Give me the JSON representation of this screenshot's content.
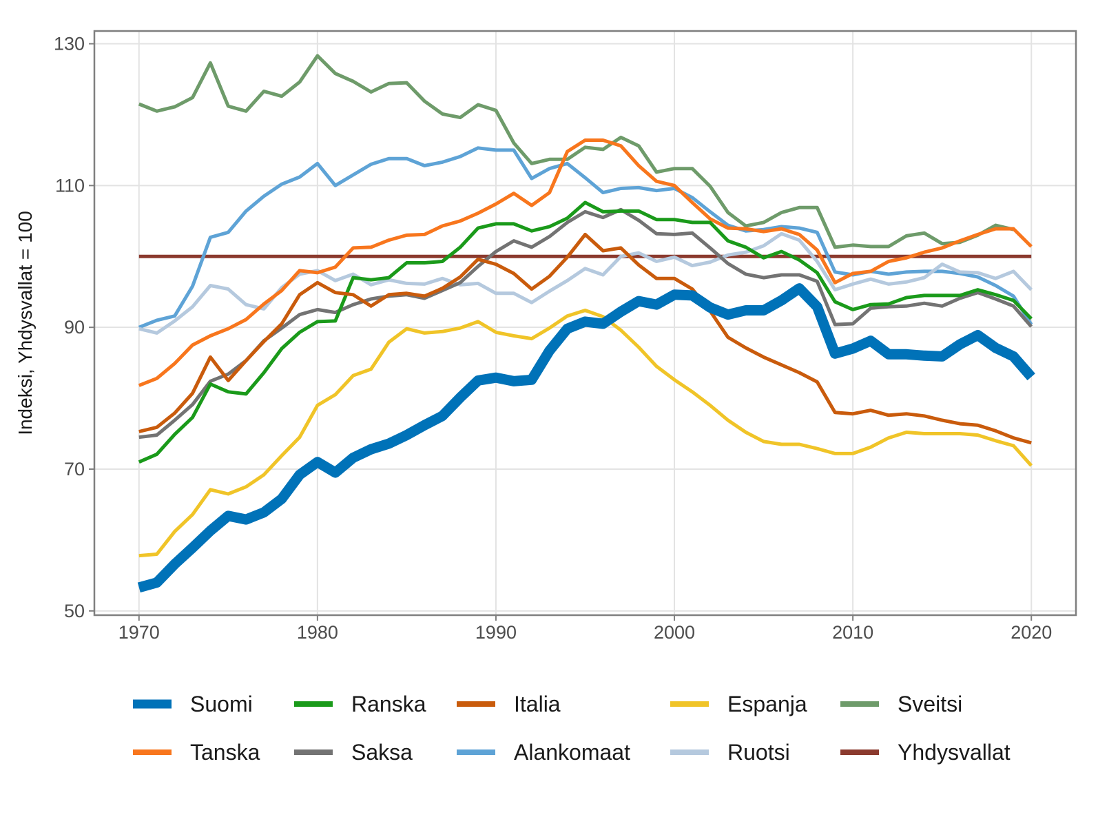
{
  "chart_data": {
    "type": "line",
    "title": "",
    "xlabel": "",
    "ylabel": "Indeksi, Yhdysvallat = 100",
    "xlim": [
      1967.5,
      2022.5
    ],
    "ylim": [
      49.4,
      131.8
    ],
    "x_ticks": [
      1970,
      1980,
      1990,
      2000,
      2010,
      2020
    ],
    "x_tick_labels": [
      "1970",
      "1980",
      "1990",
      "2000",
      "2010",
      "2020"
    ],
    "y_ticks": [
      50,
      70,
      90,
      110,
      130
    ],
    "y_tick_labels": [
      "50",
      "70",
      "90",
      "110",
      "130"
    ],
    "grid": true,
    "legend_position": "bottom",
    "x": [
      1970,
      1971,
      1972,
      1973,
      1974,
      1975,
      1976,
      1977,
      1978,
      1979,
      1980,
      1981,
      1982,
      1983,
      1984,
      1985,
      1986,
      1987,
      1988,
      1989,
      1990,
      1991,
      1992,
      1993,
      1994,
      1995,
      1996,
      1997,
      1998,
      1999,
      2000,
      2001,
      2002,
      2003,
      2004,
      2005,
      2006,
      2007,
      2008,
      2009,
      2010,
      2011,
      2012,
      2013,
      2014,
      2015,
      2016,
      2017,
      2018,
      2019,
      2020
    ],
    "series": [
      {
        "name": "Suomi",
        "color": "#0072b8",
        "width": 15,
        "values": [
          53.3,
          54.0,
          56.6,
          58.9,
          61.3,
          63.4,
          62.9,
          63.9,
          65.8,
          69.2,
          71.0,
          69.5,
          71.6,
          72.8,
          73.6,
          74.8,
          76.2,
          77.5,
          80.1,
          82.5,
          82.9,
          82.4,
          82.6,
          86.7,
          89.8,
          90.8,
          90.5,
          92.2,
          93.7,
          93.2,
          94.6,
          94.5,
          92.8,
          91.8,
          92.4,
          92.4,
          93.8,
          95.5,
          92.9,
          86.3,
          87.0,
          88.1,
          86.2,
          86.2,
          86.0,
          85.9,
          87.6,
          88.9,
          87.1,
          85.9,
          83.0
        ]
      },
      {
        "name": "Tanska",
        "color": "#f8761d",
        "width": 5,
        "values": [
          81.8,
          82.8,
          84.9,
          87.5,
          88.8,
          89.8,
          91.1,
          93.3,
          95.2,
          98.0,
          97.7,
          98.5,
          101.2,
          101.3,
          102.3,
          103.0,
          103.1,
          104.3,
          105.0,
          106.1,
          107.4,
          108.9,
          107.2,
          109.0,
          114.8,
          116.4,
          116.4,
          115.6,
          112.8,
          110.6,
          110.0,
          107.6,
          105.3,
          104.0,
          103.9,
          103.5,
          103.9,
          103.1,
          100.9,
          96.3,
          97.6,
          97.9,
          99.3,
          99.8,
          100.6,
          101.2,
          102.2,
          103.1,
          103.9,
          103.9,
          101.4
        ]
      },
      {
        "name": "Ranska",
        "color": "#1a9a1a",
        "width": 5,
        "values": [
          71.0,
          72.1,
          74.9,
          77.3,
          82.0,
          80.9,
          80.6,
          83.6,
          87.0,
          89.3,
          90.8,
          90.9,
          97.0,
          96.7,
          97.0,
          99.1,
          99.1,
          99.3,
          101.3,
          104.0,
          104.6,
          104.6,
          103.6,
          104.2,
          105.4,
          107.6,
          106.3,
          106.4,
          106.4,
          105.2,
          105.2,
          104.8,
          104.8,
          102.2,
          101.3,
          99.8,
          100.7,
          99.5,
          97.7,
          93.6,
          92.5,
          93.2,
          93.3,
          94.2,
          94.5,
          94.5,
          94.5,
          95.3,
          94.6,
          93.8,
          91.2
        ]
      },
      {
        "name": "Saksa",
        "color": "#737373",
        "width": 5,
        "values": [
          74.5,
          74.8,
          76.9,
          79.1,
          82.4,
          83.4,
          85.3,
          88.1,
          89.9,
          91.8,
          92.5,
          92.1,
          93.2,
          94.0,
          94.4,
          94.6,
          94.1,
          95.2,
          96.3,
          98.6,
          100.7,
          102.2,
          101.3,
          102.8,
          104.8,
          106.3,
          105.5,
          106.6,
          105.1,
          103.2,
          103.1,
          103.3,
          101.2,
          99.0,
          97.5,
          97.0,
          97.4,
          97.4,
          96.5,
          90.4,
          90.5,
          92.7,
          92.9,
          93.0,
          93.4,
          93.0,
          94.1,
          94.9,
          94.0,
          93.0,
          90.1
        ]
      },
      {
        "name": "Italia",
        "color": "#c95b0c",
        "width": 5,
        "values": [
          75.3,
          75.9,
          77.9,
          80.7,
          85.8,
          82.5,
          85.3,
          88.0,
          90.5,
          94.6,
          96.3,
          94.9,
          94.6,
          93.0,
          94.6,
          94.8,
          94.4,
          95.5,
          97.1,
          99.6,
          98.9,
          97.6,
          95.4,
          97.2,
          99.9,
          103.1,
          100.8,
          101.2,
          98.8,
          96.9,
          96.9,
          95.4,
          92.3,
          88.6,
          87.1,
          85.8,
          84.7,
          83.6,
          82.3,
          78.0,
          77.8,
          78.3,
          77.6,
          77.8,
          77.5,
          76.9,
          76.4,
          76.2,
          75.4,
          74.4,
          73.7
        ]
      },
      {
        "name": "Alankomaat",
        "color": "#5ea3d6",
        "width": 5,
        "values": [
          90.0,
          91.0,
          91.6,
          95.8,
          102.7,
          103.4,
          106.4,
          108.5,
          110.2,
          111.2,
          113.1,
          110.0,
          111.5,
          113.0,
          113.8,
          113.8,
          112.8,
          113.3,
          114.1,
          115.3,
          115.0,
          115.0,
          111.0,
          112.4,
          113.1,
          111.1,
          109.0,
          109.6,
          109.7,
          109.3,
          109.6,
          108.3,
          106.3,
          104.4,
          103.6,
          103.8,
          104.2,
          104.0,
          103.4,
          97.8,
          97.4,
          97.9,
          97.5,
          97.8,
          97.9,
          97.9,
          97.6,
          97.1,
          95.9,
          94.4,
          90.4
        ]
      },
      {
        "name": "Espanja",
        "color": "#f0c428",
        "width": 5,
        "values": [
          57.8,
          58.0,
          61.2,
          63.6,
          67.1,
          66.5,
          67.5,
          69.2,
          71.9,
          74.5,
          79.0,
          80.5,
          83.2,
          84.1,
          87.9,
          89.8,
          89.2,
          89.4,
          89.9,
          90.8,
          89.3,
          88.8,
          88.4,
          89.9,
          91.6,
          92.4,
          91.5,
          89.6,
          87.2,
          84.5,
          82.6,
          80.9,
          79.0,
          76.9,
          75.2,
          73.9,
          73.5,
          73.5,
          72.9,
          72.2,
          72.2,
          73.1,
          74.4,
          75.2,
          75.0,
          75.0,
          75.0,
          74.8,
          74.0,
          73.3,
          70.5
        ]
      },
      {
        "name": "Ruotsi",
        "color": "#b5c9de",
        "width": 5,
        "values": [
          89.8,
          89.2,
          90.9,
          92.9,
          95.9,
          95.4,
          93.2,
          92.6,
          95.6,
          97.5,
          98.0,
          96.6,
          97.5,
          96.0,
          96.7,
          96.2,
          96.1,
          96.9,
          96.0,
          96.2,
          94.8,
          94.8,
          93.5,
          95.1,
          96.6,
          98.3,
          97.4,
          100.0,
          100.5,
          99.3,
          99.9,
          98.7,
          99.2,
          100.2,
          100.6,
          101.5,
          103.2,
          102.3,
          99.3,
          95.3,
          96.1,
          96.8,
          96.1,
          96.4,
          97.0,
          98.9,
          97.8,
          97.7,
          96.9,
          97.9,
          95.3
        ]
      },
      {
        "name": "Sveitsi",
        "color": "#6e9b6a",
        "width": 5,
        "values": [
          121.5,
          120.5,
          121.1,
          122.4,
          127.3,
          121.2,
          120.5,
          123.3,
          122.6,
          124.6,
          128.3,
          125.8,
          124.7,
          123.2,
          124.4,
          124.5,
          121.9,
          120.1,
          119.6,
          121.4,
          120.6,
          116.0,
          113.1,
          113.7,
          113.7,
          115.4,
          115.1,
          116.8,
          115.6,
          111.9,
          112.4,
          112.4,
          109.9,
          106.2,
          104.3,
          104.8,
          106.2,
          106.9,
          106.9,
          101.3,
          101.6,
          101.4,
          101.4,
          102.9,
          103.3,
          101.8,
          102.0,
          103.0,
          104.4,
          103.8,
          null
        ]
      },
      {
        "name": "Yhdysvallat",
        "color": "#8b3a2e",
        "width": 5,
        "values": [
          100,
          100,
          100,
          100,
          100,
          100,
          100,
          100,
          100,
          100,
          100,
          100,
          100,
          100,
          100,
          100,
          100,
          100,
          100,
          100,
          100,
          100,
          100,
          100,
          100,
          100,
          100,
          100,
          100,
          100,
          100,
          100,
          100,
          100,
          100,
          100,
          100,
          100,
          100,
          100,
          100,
          100,
          100,
          100,
          100,
          100,
          100,
          100,
          100,
          100,
          100
        ]
      }
    ],
    "legend_rows": [
      [
        "Suomi",
        "Ranska",
        "Italia",
        "Espanja",
        "Sveitsi"
      ],
      [
        "Tanska",
        "Saksa",
        "Alankomaat",
        "Ruotsi",
        "Yhdysvallat"
      ]
    ]
  }
}
